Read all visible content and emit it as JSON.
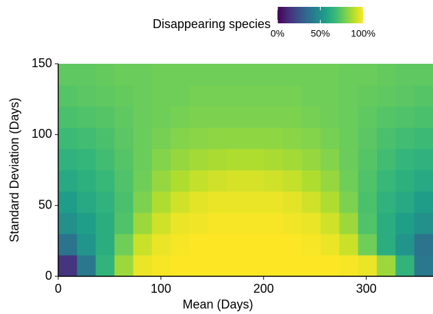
{
  "chart_data": {
    "type": "heatmap",
    "xlabel": "Mean (Days)",
    "ylabel": "Standard Deviation (Days)",
    "colorbar_label": "Disappearing species",
    "xlim": [
      0,
      365
    ],
    "ylim": [
      0,
      150
    ],
    "xticks": [
      0,
      100,
      200,
      300
    ],
    "yticks": [
      0,
      50,
      100,
      150
    ],
    "clim": [
      0,
      100
    ],
    "cticks": [
      {
        "value": 0,
        "label": "0%"
      },
      {
        "value": 50,
        "label": "50%"
      },
      {
        "value": 100,
        "label": "100%"
      }
    ],
    "colorscale": [
      "#440154",
      "#482878",
      "#3e4989",
      "#31688e",
      "#26828e",
      "#1f9e89",
      "#35b779",
      "#6ece58",
      "#b5de2b",
      "#fde725"
    ],
    "x_bins": [
      0,
      18.25,
      36.5,
      54.75,
      73,
      91.25,
      109.5,
      127.75,
      146,
      164.25,
      182.5,
      200.75,
      219,
      237.25,
      255.5,
      273.75,
      292,
      310.25,
      328.5,
      346.75,
      365
    ],
    "y_bins": [
      0,
      15,
      30,
      45,
      60,
      75,
      90,
      105,
      120,
      135,
      150
    ],
    "z": [
      [
        15,
        40,
        65,
        85,
        97,
        99,
        100,
        100,
        100,
        100,
        100,
        100,
        100,
        100,
        100,
        99,
        97,
        85,
        65,
        40
      ],
      [
        38,
        52,
        62,
        78,
        92,
        97,
        99,
        100,
        100,
        100,
        100,
        100,
        100,
        99,
        97,
        92,
        78,
        62,
        52,
        38
      ],
      [
        50,
        56,
        62,
        72,
        85,
        93,
        97,
        98,
        99,
        99,
        99,
        99,
        98,
        97,
        93,
        85,
        72,
        62,
        56,
        50
      ],
      [
        55,
        60,
        64,
        71,
        80,
        88,
        93,
        96,
        97,
        97,
        97,
        97,
        96,
        93,
        88,
        80,
        71,
        64,
        60,
        55
      ],
      [
        60,
        63,
        67,
        72,
        78,
        84,
        88,
        91,
        93,
        94,
        94,
        93,
        91,
        88,
        84,
        78,
        72,
        67,
        63,
        60
      ],
      [
        64,
        66,
        69,
        73,
        77,
        81,
        84,
        86,
        87,
        88,
        88,
        87,
        86,
        84,
        81,
        77,
        73,
        69,
        66,
        64
      ],
      [
        68,
        69,
        71,
        74,
        77,
        79,
        81,
        82,
        83,
        83,
        83,
        83,
        82,
        81,
        79,
        77,
        74,
        71,
        69,
        68
      ],
      [
        71,
        72,
        73,
        75,
        77,
        78,
        79,
        80,
        80,
        80,
        80,
        80,
        80,
        79,
        78,
        77,
        75,
        73,
        72,
        71
      ],
      [
        73,
        74,
        75,
        76,
        77,
        78,
        78,
        79,
        79,
        79,
        79,
        79,
        79,
        78,
        78,
        77,
        76,
        75,
        74,
        73
      ],
      [
        75,
        75,
        76,
        77,
        77,
        78,
        78,
        78,
        78,
        78,
        78,
        78,
        78,
        78,
        78,
        77,
        77,
        76,
        75,
        75
      ]
    ]
  }
}
